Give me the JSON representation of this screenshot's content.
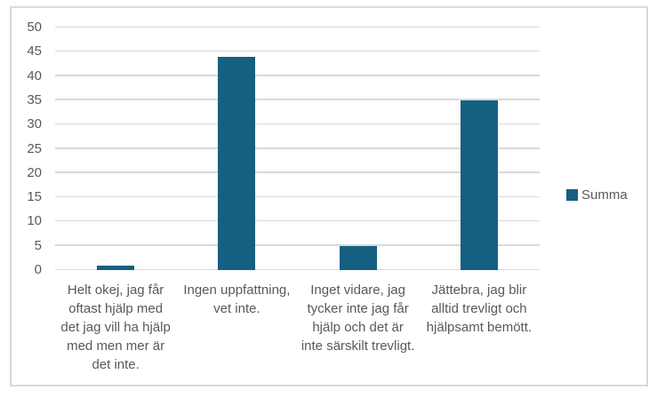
{
  "chart_data": {
    "type": "bar",
    "title": "",
    "categories": [
      "Helt okej, jag får oftast hjälp med det jag vill ha hjälp med men mer är det inte.",
      "Ingen uppfattning, vet inte.",
      "Inget vidare, jag tycker inte jag får hjälp och det är inte särskilt trevligt.",
      "Jättebra, jag blir alltid trevligt och hjälpsamt bemött."
    ],
    "series": [
      {
        "name": "Summa",
        "values": [
          1,
          44,
          5,
          35
        ]
      }
    ],
    "ylim": [
      0,
      50
    ],
    "yticks": [
      0,
      5,
      10,
      15,
      20,
      25,
      30,
      35,
      40,
      45,
      50
    ],
    "grid": true,
    "legend_position": "right",
    "colors": {
      "bar": "#156082",
      "gridline": "#d9d9d9",
      "border": "#d9d9d9",
      "axis_text": "#595959"
    }
  }
}
